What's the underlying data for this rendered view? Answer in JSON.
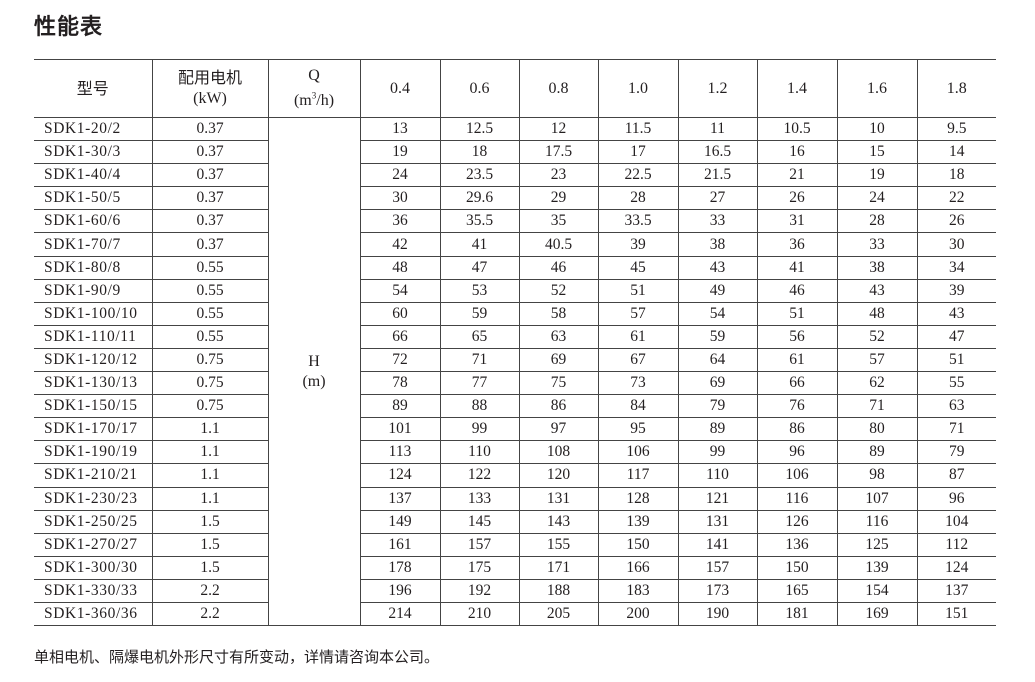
{
  "title": "性能表",
  "table": {
    "header": {
      "model": "型号",
      "motor_line1": "配用电机",
      "motor_line2": "(kW)",
      "q_line1": "Q",
      "q_unit_pre": "(m",
      "q_unit_sup": "3",
      "q_unit_post": "/h)",
      "h_line1": "H",
      "h_line2": "(m)",
      "flows": [
        "0.4",
        "0.6",
        "0.8",
        "1.0",
        "1.2",
        "1.4",
        "1.6",
        "1.8"
      ]
    },
    "rows": [
      {
        "model": "SDK1-20/2",
        "kw": "0.37",
        "heads": [
          "13",
          "12.5",
          "12",
          "11.5",
          "11",
          "10.5",
          "10",
          "9.5"
        ]
      },
      {
        "model": "SDK1-30/3",
        "kw": "0.37",
        "heads": [
          "19",
          "18",
          "17.5",
          "17",
          "16.5",
          "16",
          "15",
          "14"
        ]
      },
      {
        "model": "SDK1-40/4",
        "kw": "0.37",
        "heads": [
          "24",
          "23.5",
          "23",
          "22.5",
          "21.5",
          "21",
          "19",
          "18"
        ]
      },
      {
        "model": "SDK1-50/5",
        "kw": "0.37",
        "heads": [
          "30",
          "29.6",
          "29",
          "28",
          "27",
          "26",
          "24",
          "22"
        ]
      },
      {
        "model": "SDK1-60/6",
        "kw": "0.37",
        "heads": [
          "36",
          "35.5",
          "35",
          "33.5",
          "33",
          "31",
          "28",
          "26"
        ]
      },
      {
        "model": "SDK1-70/7",
        "kw": "0.37",
        "heads": [
          "42",
          "41",
          "40.5",
          "39",
          "38",
          "36",
          "33",
          "30"
        ]
      },
      {
        "model": "SDK1-80/8",
        "kw": "0.55",
        "heads": [
          "48",
          "47",
          "46",
          "45",
          "43",
          "41",
          "38",
          "34"
        ]
      },
      {
        "model": "SDK1-90/9",
        "kw": "0.55",
        "heads": [
          "54",
          "53",
          "52",
          "51",
          "49",
          "46",
          "43",
          "39"
        ]
      },
      {
        "model": "SDK1-100/10",
        "kw": "0.55",
        "heads": [
          "60",
          "59",
          "58",
          "57",
          "54",
          "51",
          "48",
          "43"
        ]
      },
      {
        "model": "SDK1-110/11",
        "kw": "0.55",
        "heads": [
          "66",
          "65",
          "63",
          "61",
          "59",
          "56",
          "52",
          "47"
        ]
      },
      {
        "model": "SDK1-120/12",
        "kw": "0.75",
        "heads": [
          "72",
          "71",
          "69",
          "67",
          "64",
          "61",
          "57",
          "51"
        ]
      },
      {
        "model": "SDK1-130/13",
        "kw": "0.75",
        "heads": [
          "78",
          "77",
          "75",
          "73",
          "69",
          "66",
          "62",
          "55"
        ]
      },
      {
        "model": "SDK1-150/15",
        "kw": "0.75",
        "heads": [
          "89",
          "88",
          "86",
          "84",
          "79",
          "76",
          "71",
          "63"
        ]
      },
      {
        "model": "SDK1-170/17",
        "kw": "1.1",
        "heads": [
          "101",
          "99",
          "97",
          "95",
          "89",
          "86",
          "80",
          "71"
        ]
      },
      {
        "model": "SDK1-190/19",
        "kw": "1.1",
        "heads": [
          "113",
          "110",
          "108",
          "106",
          "99",
          "96",
          "89",
          "79"
        ]
      },
      {
        "model": "SDK1-210/21",
        "kw": "1.1",
        "heads": [
          "124",
          "122",
          "120",
          "117",
          "110",
          "106",
          "98",
          "87"
        ]
      },
      {
        "model": "SDK1-230/23",
        "kw": "1.1",
        "heads": [
          "137",
          "133",
          "131",
          "128",
          "121",
          "116",
          "107",
          "96"
        ]
      },
      {
        "model": "SDK1-250/25",
        "kw": "1.5",
        "heads": [
          "149",
          "145",
          "143",
          "139",
          "131",
          "126",
          "116",
          "104"
        ]
      },
      {
        "model": "SDK1-270/27",
        "kw": "1.5",
        "heads": [
          "161",
          "157",
          "155",
          "150",
          "141",
          "136",
          "125",
          "112"
        ]
      },
      {
        "model": "SDK1-300/30",
        "kw": "1.5",
        "heads": [
          "178",
          "175",
          "171",
          "166",
          "157",
          "150",
          "139",
          "124"
        ]
      },
      {
        "model": "SDK1-330/33",
        "kw": "2.2",
        "heads": [
          "196",
          "192",
          "188",
          "183",
          "173",
          "165",
          "154",
          "137"
        ]
      },
      {
        "model": "SDK1-360/36",
        "kw": "2.2",
        "heads": [
          "214",
          "210",
          "205",
          "200",
          "190",
          "181",
          "169",
          "151"
        ]
      }
    ]
  },
  "footnote": "单相电机、隔爆电机外形尺寸有所变动，详情请咨询本公司。"
}
